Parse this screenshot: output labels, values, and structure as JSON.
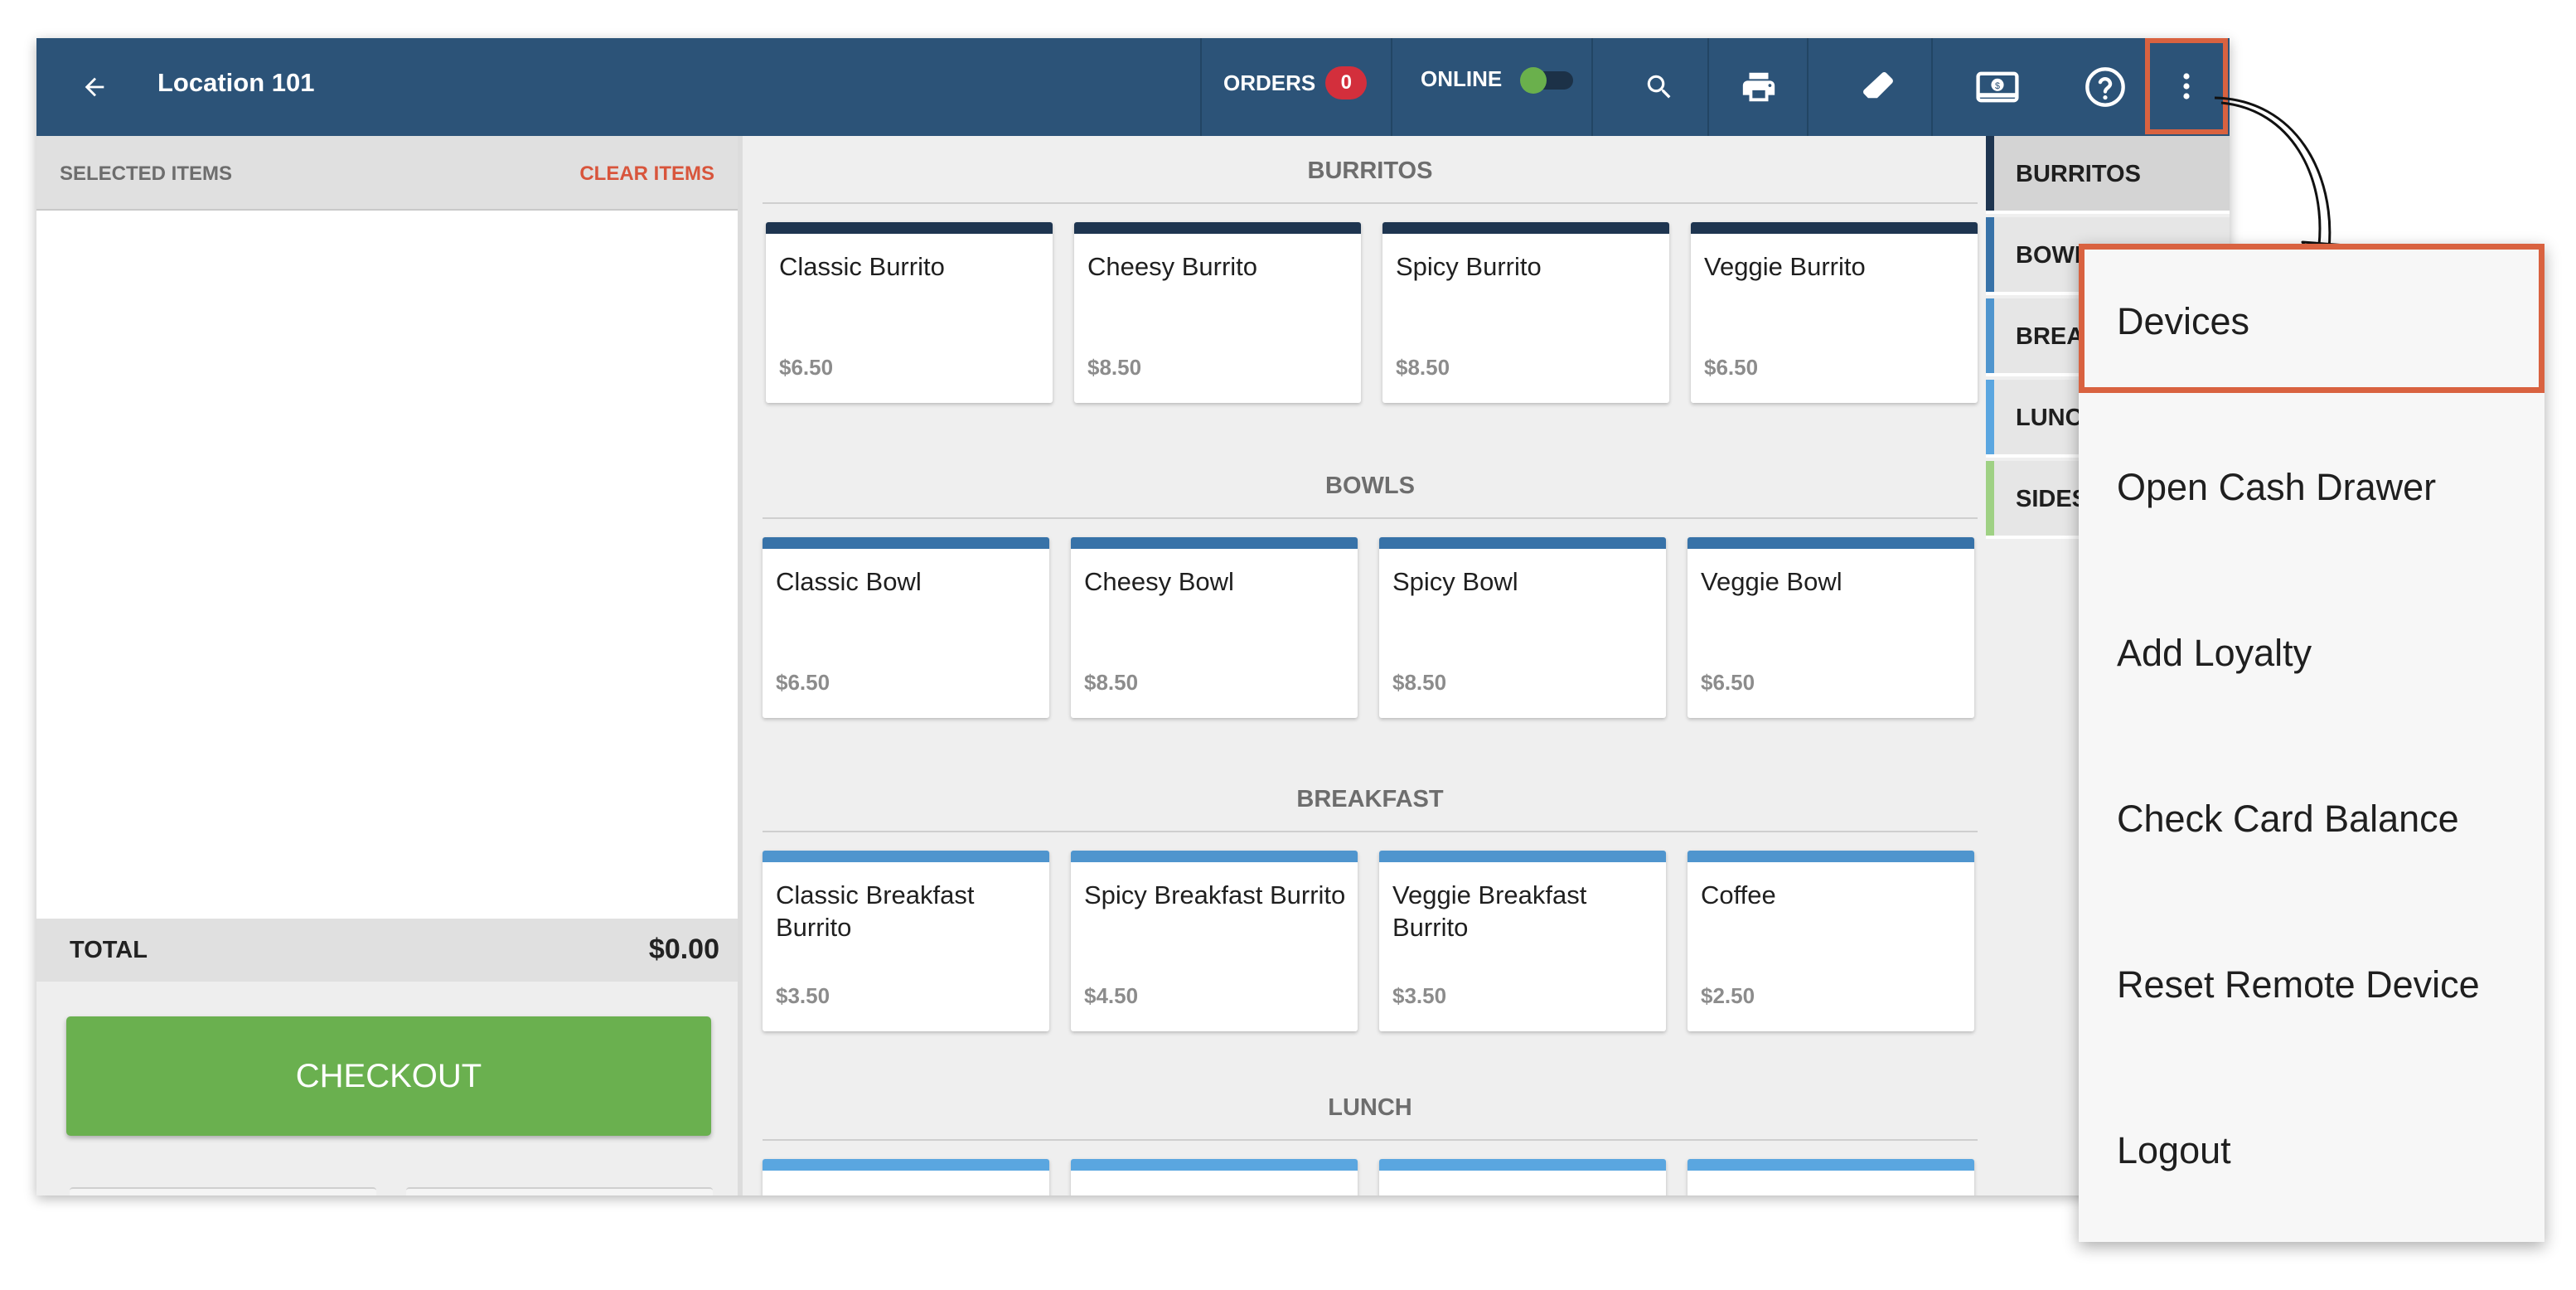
{
  "header": {
    "title": "Location 101",
    "orders_label": "ORDERS",
    "orders_count": "0",
    "online_label": "ONLINE",
    "online_state": "on",
    "icons": [
      "back-arrow-icon",
      "search-icon",
      "printer-icon",
      "eraser-icon",
      "cash-drawer-icon",
      "help-icon",
      "more-vertical-icon"
    ]
  },
  "order_panel": {
    "title": "SELECTED ITEMS",
    "clear_label": "CLEAR ITEMS",
    "total_label": "TOTAL",
    "total_value": "$0.00",
    "checkout_label": "CHECKOUT"
  },
  "menu": {
    "sections": [
      {
        "title": "BURRITOS",
        "color": "#1e3550",
        "items": [
          {
            "name": "Classic Burrito",
            "price": "$6.50"
          },
          {
            "name": "Cheesy Burrito",
            "price": "$8.50"
          },
          {
            "name": "Spicy Burrito",
            "price": "$8.50"
          },
          {
            "name": "Veggie Burrito",
            "price": "$6.50"
          }
        ]
      },
      {
        "title": "BOWLS",
        "color": "#3772a8",
        "items": [
          {
            "name": "Classic Bowl",
            "price": "$6.50"
          },
          {
            "name": "Cheesy Bowl",
            "price": "$8.50"
          },
          {
            "name": "Spicy Bowl",
            "price": "$8.50"
          },
          {
            "name": "Veggie Bowl",
            "price": "$6.50"
          }
        ]
      },
      {
        "title": "BREAKFAST",
        "color": "#4f95ce",
        "items": [
          {
            "name": "Classic Breakfast Burrito",
            "price": "$3.50"
          },
          {
            "name": "Spicy Breakfast Burrito",
            "price": "$4.50"
          },
          {
            "name": "Veggie Breakfast Burrito",
            "price": "$3.50"
          },
          {
            "name": "Coffee",
            "price": "$2.50"
          }
        ]
      },
      {
        "title": "LUNCH",
        "color": "#5aa6e0",
        "items": [
          {
            "name": "",
            "price": ""
          },
          {
            "name": "",
            "price": ""
          },
          {
            "name": "",
            "price": ""
          },
          {
            "name": "",
            "price": ""
          }
        ]
      }
    ]
  },
  "categories": [
    {
      "label": "BURRITOS",
      "color": "#1e3550",
      "active": true
    },
    {
      "label": "BOWLS",
      "color": "#3772a8",
      "active": false
    },
    {
      "label": "BREAKFAST",
      "color": "#4f95ce",
      "active": false
    },
    {
      "label": "LUNCH",
      "color": "#5aa6e0",
      "active": false
    },
    {
      "label": "SIDES",
      "color": "#9fd184",
      "active": false
    }
  ],
  "dropdown": {
    "items": [
      "Devices",
      "Open Cash Drawer",
      "Add Loyalty",
      "Check Card Balance",
      "Reset Remote Device",
      "Logout"
    ],
    "highlighted": "Devices"
  },
  "colors": {
    "topbar": "#2c5378",
    "accent_highlight": "#d96240",
    "checkout": "#6ab04f",
    "badge": "#d32f3c",
    "online_toggle": "#6ab04c"
  }
}
